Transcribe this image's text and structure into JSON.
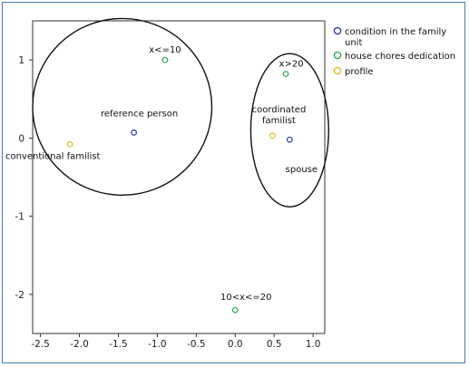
{
  "chart_data": {
    "type": "scatter",
    "xlim": [
      -2.6,
      1.15
    ],
    "ylim": [
      -2.5,
      1.5
    ],
    "x_ticks": [
      "-2.5",
      "-2.0",
      "-1.5",
      "-1.0",
      "-0.5",
      "0.0",
      "0.5",
      "1.0"
    ],
    "y_ticks": [
      "1",
      "0",
      "-1",
      "-2"
    ],
    "legend": {
      "position": "top-right",
      "entries": [
        {
          "label": "condition in the family unit",
          "color": "#2b3aa8"
        },
        {
          "label": "house chores dedication",
          "color": "#2fa84f"
        },
        {
          "label": "profile",
          "color": "#e0c020"
        }
      ]
    },
    "points": [
      {
        "x": -0.9,
        "y": 1.0,
        "series": 1,
        "label": "x<=10"
      },
      {
        "x": 0.65,
        "y": 0.82,
        "series": 1,
        "label": "x>20"
      },
      {
        "x": -1.3,
        "y": 0.07,
        "series": 0,
        "label": "reference person"
      },
      {
        "x": -2.12,
        "y": -0.08,
        "series": 2,
        "label": "conventional familist"
      },
      {
        "x": 0.48,
        "y": 0.03,
        "series": 2,
        "label": "coordinated familist"
      },
      {
        "x": 0.7,
        "y": -0.02,
        "series": 0,
        "label": "spouse"
      },
      {
        "x": 0.0,
        "y": -2.2,
        "series": 1,
        "label": "10<x<=20"
      }
    ],
    "ellipses": [
      {
        "cx": -1.45,
        "cy": 0.4,
        "rx": 1.15,
        "ry": 1.13
      },
      {
        "cx": 0.7,
        "cy": 0.1,
        "rx": 0.5,
        "ry": 0.98
      }
    ]
  }
}
